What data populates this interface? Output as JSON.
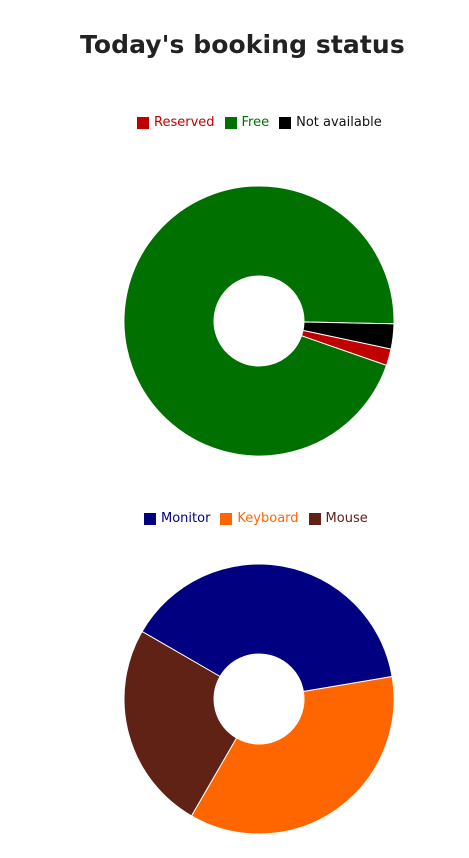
{
  "page": {
    "title": "Today's booking status"
  },
  "chart_data": [
    {
      "type": "pie",
      "donut": true,
      "categories": [
        "Reserved",
        "Free",
        "Not available"
      ],
      "values": [
        2,
        95,
        3
      ],
      "colors": [
        "#c00000",
        "#007000",
        "#000000"
      ],
      "legend_position": "top",
      "title": "",
      "start_angle_deg": 12
    },
    {
      "type": "pie",
      "donut": true,
      "categories": [
        "Monitor",
        "Keyboard",
        "Mouse"
      ],
      "values": [
        39,
        36,
        25
      ],
      "colors": [
        "#000080",
        "#ff6600",
        "#5f2215"
      ],
      "legend_position": "top",
      "title": "",
      "start_angle_deg": -150
    }
  ]
}
